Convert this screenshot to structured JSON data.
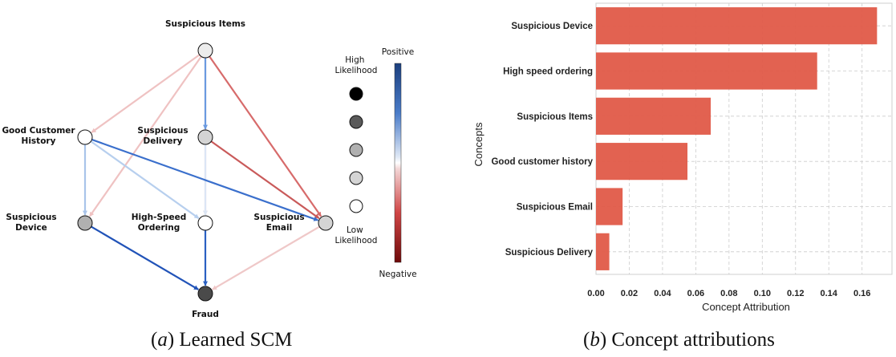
{
  "scm": {
    "nodes": [
      {
        "id": "items",
        "label": [
          "Suspicious Items"
        ],
        "level": "low-2"
      },
      {
        "id": "history",
        "label": [
          "Good Customer",
          "History"
        ],
        "level": "low-1"
      },
      {
        "id": "delivery",
        "label": [
          "Suspicious",
          "Delivery"
        ],
        "level": "low-3"
      },
      {
        "id": "device",
        "label": [
          "Suspicious",
          "Device"
        ],
        "level": "mid"
      },
      {
        "id": "ordering",
        "label": [
          "High-Speed",
          "Ordering"
        ],
        "level": "low-1"
      },
      {
        "id": "email",
        "label": [
          "Suspicious",
          "Email"
        ],
        "level": "low-3"
      },
      {
        "id": "fraud",
        "label": [
          "Fraud"
        ],
        "level": "high-2"
      }
    ],
    "edges": [
      {
        "from": "items",
        "to": "history",
        "color": "#efc2c2"
      },
      {
        "from": "items",
        "to": "device",
        "color": "#efc2c2"
      },
      {
        "from": "items",
        "to": "ordering",
        "color": "#f0cccc"
      },
      {
        "from": "items",
        "to": "delivery",
        "color": "#6a9ae0"
      },
      {
        "from": "items",
        "to": "email",
        "color": "#d76b6b"
      },
      {
        "from": "delivery",
        "to": "ordering",
        "color": "#dce6f5"
      },
      {
        "from": "delivery",
        "to": "email",
        "color": "#c95a5a"
      },
      {
        "from": "history",
        "to": "device",
        "color": "#a9c4ea"
      },
      {
        "from": "history",
        "to": "ordering",
        "color": "#b7cfee"
      },
      {
        "from": "history",
        "to": "email",
        "color": "#3a6fcc"
      },
      {
        "from": "device",
        "to": "fraud",
        "color": "#2153b8"
      },
      {
        "from": "ordering",
        "to": "fraud",
        "color": "#2a60c2"
      },
      {
        "from": "email",
        "to": "fraud",
        "color": "#efc8c8"
      }
    ],
    "legend": {
      "high_label": [
        "High",
        "Likelihood"
      ],
      "low_label": [
        "Low",
        "Likelihood"
      ],
      "positive_label": "Positive",
      "negative_label": "Negative",
      "circle_fills": [
        "#000000",
        "#5a5a5a",
        "#b0b0b0",
        "#d4d4d4",
        "#ffffff"
      ]
    },
    "caption_letter": "a",
    "caption_text": "Learned SCM"
  },
  "chart_data": {
    "type": "bar",
    "orientation": "horizontal",
    "categories": [
      "Suspicious Device",
      "High speed ordering",
      "Suspicious Items",
      "Good customer history",
      "Suspicious Email",
      "Suspicious Delivery"
    ],
    "values": [
      0.169,
      0.133,
      0.069,
      0.055,
      0.016,
      0.008
    ],
    "xlabel": "Concept Attribution",
    "ylabel": "Concepts",
    "xlim": [
      0,
      0.178
    ],
    "xticks": [
      "0.00",
      "0.02",
      "0.04",
      "0.06",
      "0.08",
      "0.10",
      "0.12",
      "0.14",
      "0.16"
    ],
    "bar_color": "#e05a48",
    "grid": true
  },
  "bars_caption_letter": "b",
  "bars_caption_text": "Concept attributions"
}
